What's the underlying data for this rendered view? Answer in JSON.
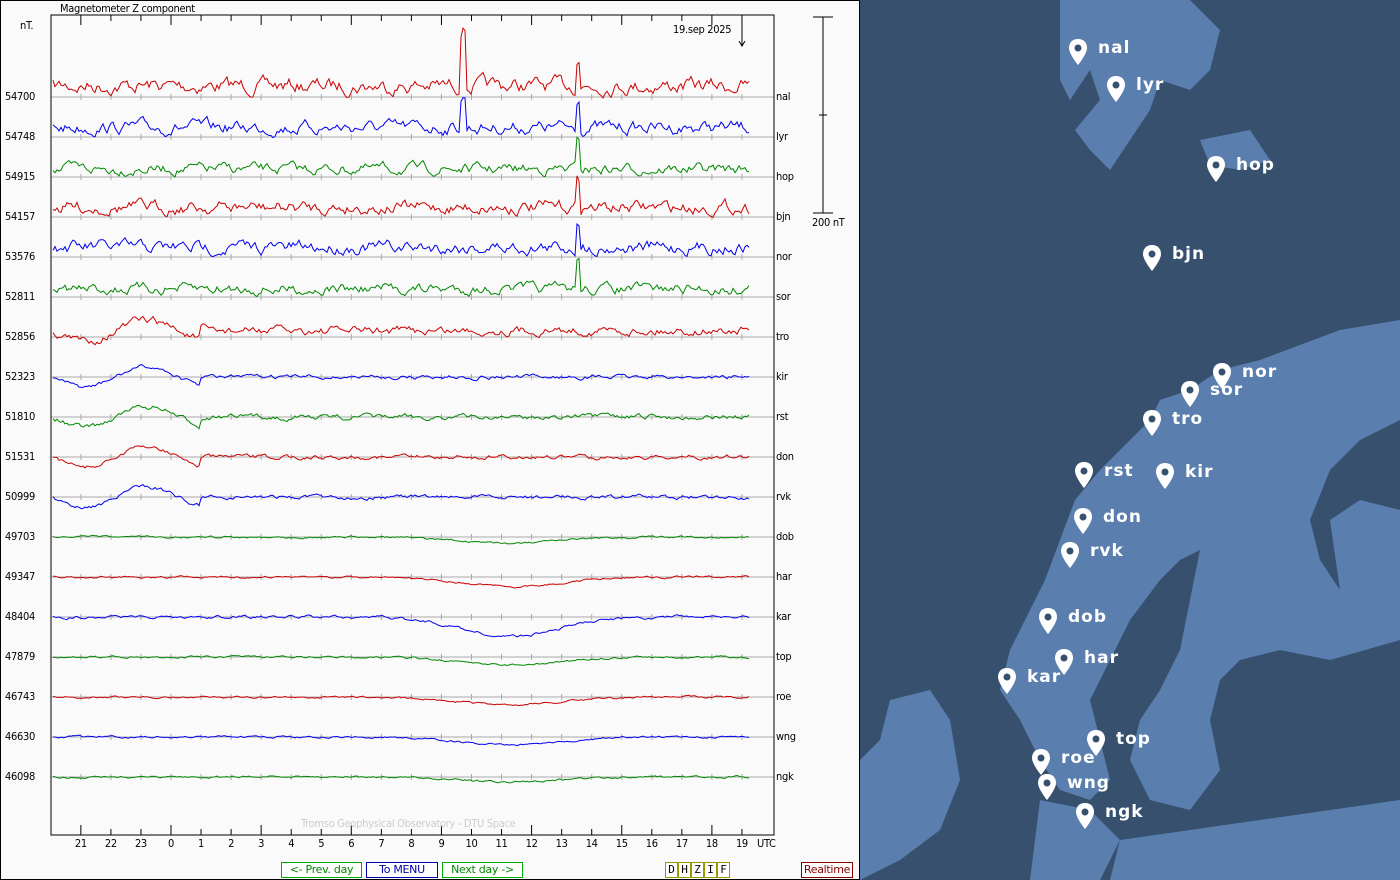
{
  "chart": {
    "title": "Magnetometer Z component",
    "unit_label": "nT.",
    "date_label": "19.sep 2025",
    "scale_label": "200 nT",
    "watermark": "Tromso Geophysical Observatory - DTU Space",
    "x_ticks": [
      "21",
      "22",
      "23",
      "0",
      "1",
      "2",
      "3",
      "4",
      "5",
      "6",
      "7",
      "8",
      "9",
      "10",
      "11",
      "12",
      "13",
      "14",
      "15",
      "16",
      "17",
      "18",
      "19"
    ],
    "x_unit": "UTC",
    "stations": [
      {
        "code": "nal",
        "baseline": "54700",
        "color": "#cc0000"
      },
      {
        "code": "lyr",
        "baseline": "54748",
        "color": "#0000ee"
      },
      {
        "code": "hop",
        "baseline": "54915",
        "color": "#008800"
      },
      {
        "code": "bjn",
        "baseline": "54157",
        "color": "#cc0000"
      },
      {
        "code": "nor",
        "baseline": "53576",
        "color": "#0000ee"
      },
      {
        "code": "sor",
        "baseline": "52811",
        "color": "#008800"
      },
      {
        "code": "tro",
        "baseline": "52856",
        "color": "#cc0000"
      },
      {
        "code": "kir",
        "baseline": "52323",
        "color": "#0000ee"
      },
      {
        "code": "rst",
        "baseline": "51810",
        "color": "#008800"
      },
      {
        "code": "don",
        "baseline": "51531",
        "color": "#cc0000"
      },
      {
        "code": "rvk",
        "baseline": "50999",
        "color": "#0000ee"
      },
      {
        "code": "dob",
        "baseline": "49703",
        "color": "#008800"
      },
      {
        "code": "har",
        "baseline": "49347",
        "color": "#cc0000"
      },
      {
        "code": "kar",
        "baseline": "48404",
        "color": "#0000ee"
      },
      {
        "code": "top",
        "baseline": "47879",
        "color": "#008800"
      },
      {
        "code": "roe",
        "baseline": "46743",
        "color": "#cc0000"
      },
      {
        "code": "wng",
        "baseline": "46630",
        "color": "#0000ee"
      },
      {
        "code": "ngk",
        "baseline": "46098",
        "color": "#008800"
      }
    ]
  },
  "nav": {
    "prev": "<- Prev. day",
    "menu": "To MENU",
    "next": "Next day ->",
    "realtime": "Realtime",
    "components": [
      "D",
      "H",
      "Z",
      "I",
      "F"
    ]
  },
  "map": {
    "markers": [
      "nal",
      "lyr",
      "hop",
      "bjn",
      "nor",
      "sor",
      "tro",
      "rst",
      "kir",
      "don",
      "rvk",
      "dob",
      "har",
      "kar",
      "top",
      "roe",
      "wng",
      "ngk"
    ]
  }
}
